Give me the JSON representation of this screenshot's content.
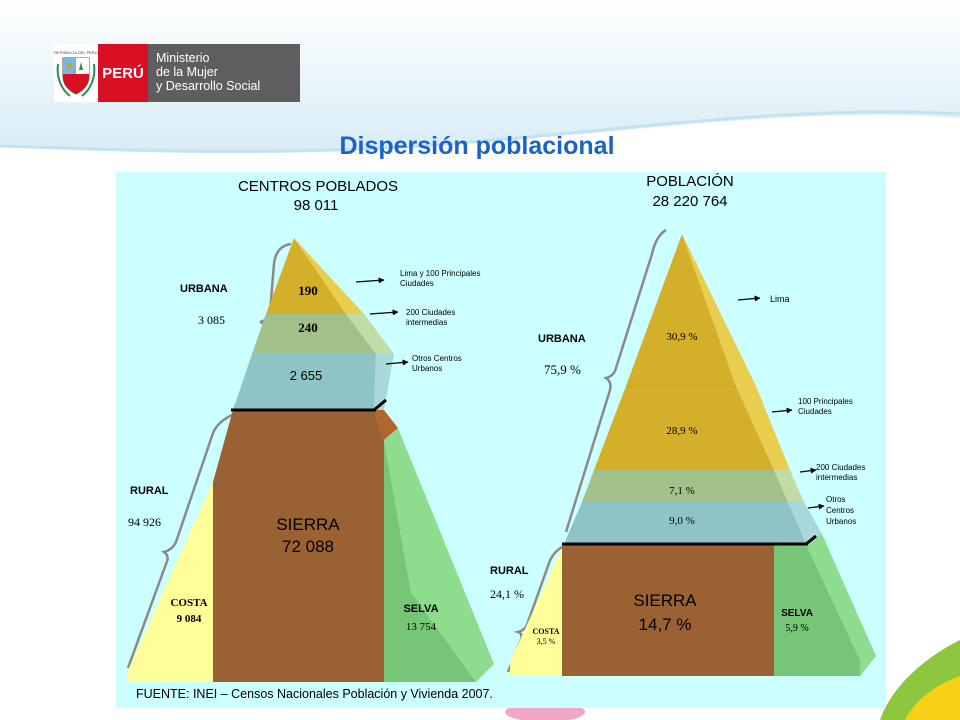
{
  "header": {
    "coat_label": "REPÚBLICA DEL PERÚ",
    "country": "PERÚ",
    "ministry_lines": [
      "Ministerio",
      "de la Mujer",
      "y Desarrollo Social"
    ]
  },
  "title": "Dispersión poblacional",
  "left_pyramid": {
    "heading": "CENTROS POBLADOS",
    "total": "98 011",
    "urbana": {
      "label": "URBANA",
      "value": "3 085"
    },
    "rural": {
      "label": "RURAL",
      "value": "94 926"
    },
    "levels": [
      {
        "value": "190",
        "note": [
          "Lima y 100 Principales",
          "Ciudades"
        ]
      },
      {
        "value": "240",
        "note": [
          "200 Ciudades",
          "intermedias"
        ]
      },
      {
        "value": "2 655",
        "note": [
          "Otros Centros",
          "Urbanos"
        ]
      }
    ],
    "sierra": {
      "label": "SIERRA",
      "value": "72 088"
    },
    "costa": {
      "label": "COSTA",
      "value": "9 084"
    },
    "selva": {
      "label": "SELVA",
      "value": "13 754"
    }
  },
  "right_pyramid": {
    "heading": "POBLACIÓN",
    "total": "28 220 764",
    "urbana": {
      "label": "URBANA",
      "value": "75,9 %"
    },
    "rural": {
      "label": "RURAL",
      "value": "24,1 %"
    },
    "levels": [
      {
        "value": "30,9 %",
        "note": [
          "Lima"
        ]
      },
      {
        "value": "28,9 %",
        "note": [
          "100 Principales",
          "Ciudades"
        ]
      },
      {
        "value": "7,1 %",
        "note": [
          "200 Ciudades",
          "intermedias"
        ]
      },
      {
        "value": "9,0 %",
        "note": [
          "Otros",
          "Centros",
          "Urbanos"
        ]
      }
    ],
    "sierra": {
      "label": "SIERRA",
      "value": "14,7 %"
    },
    "costa": {
      "label": "COSTA",
      "value": "3,5 %"
    },
    "selva": {
      "label": "SELVA",
      "value": "5,9 %"
    }
  },
  "source": "FUENTE: INEI – Censos Nacionales Población y Vivienda 2007.",
  "colors": {
    "title": "#1a63c8",
    "panel": "#ccffff",
    "gold": "#d4b02a",
    "light_green": "#a3c08a",
    "teal": "#8ec4c6",
    "sierra": "#9a6233",
    "selva": "#77c677",
    "costa": "#ffff99"
  }
}
